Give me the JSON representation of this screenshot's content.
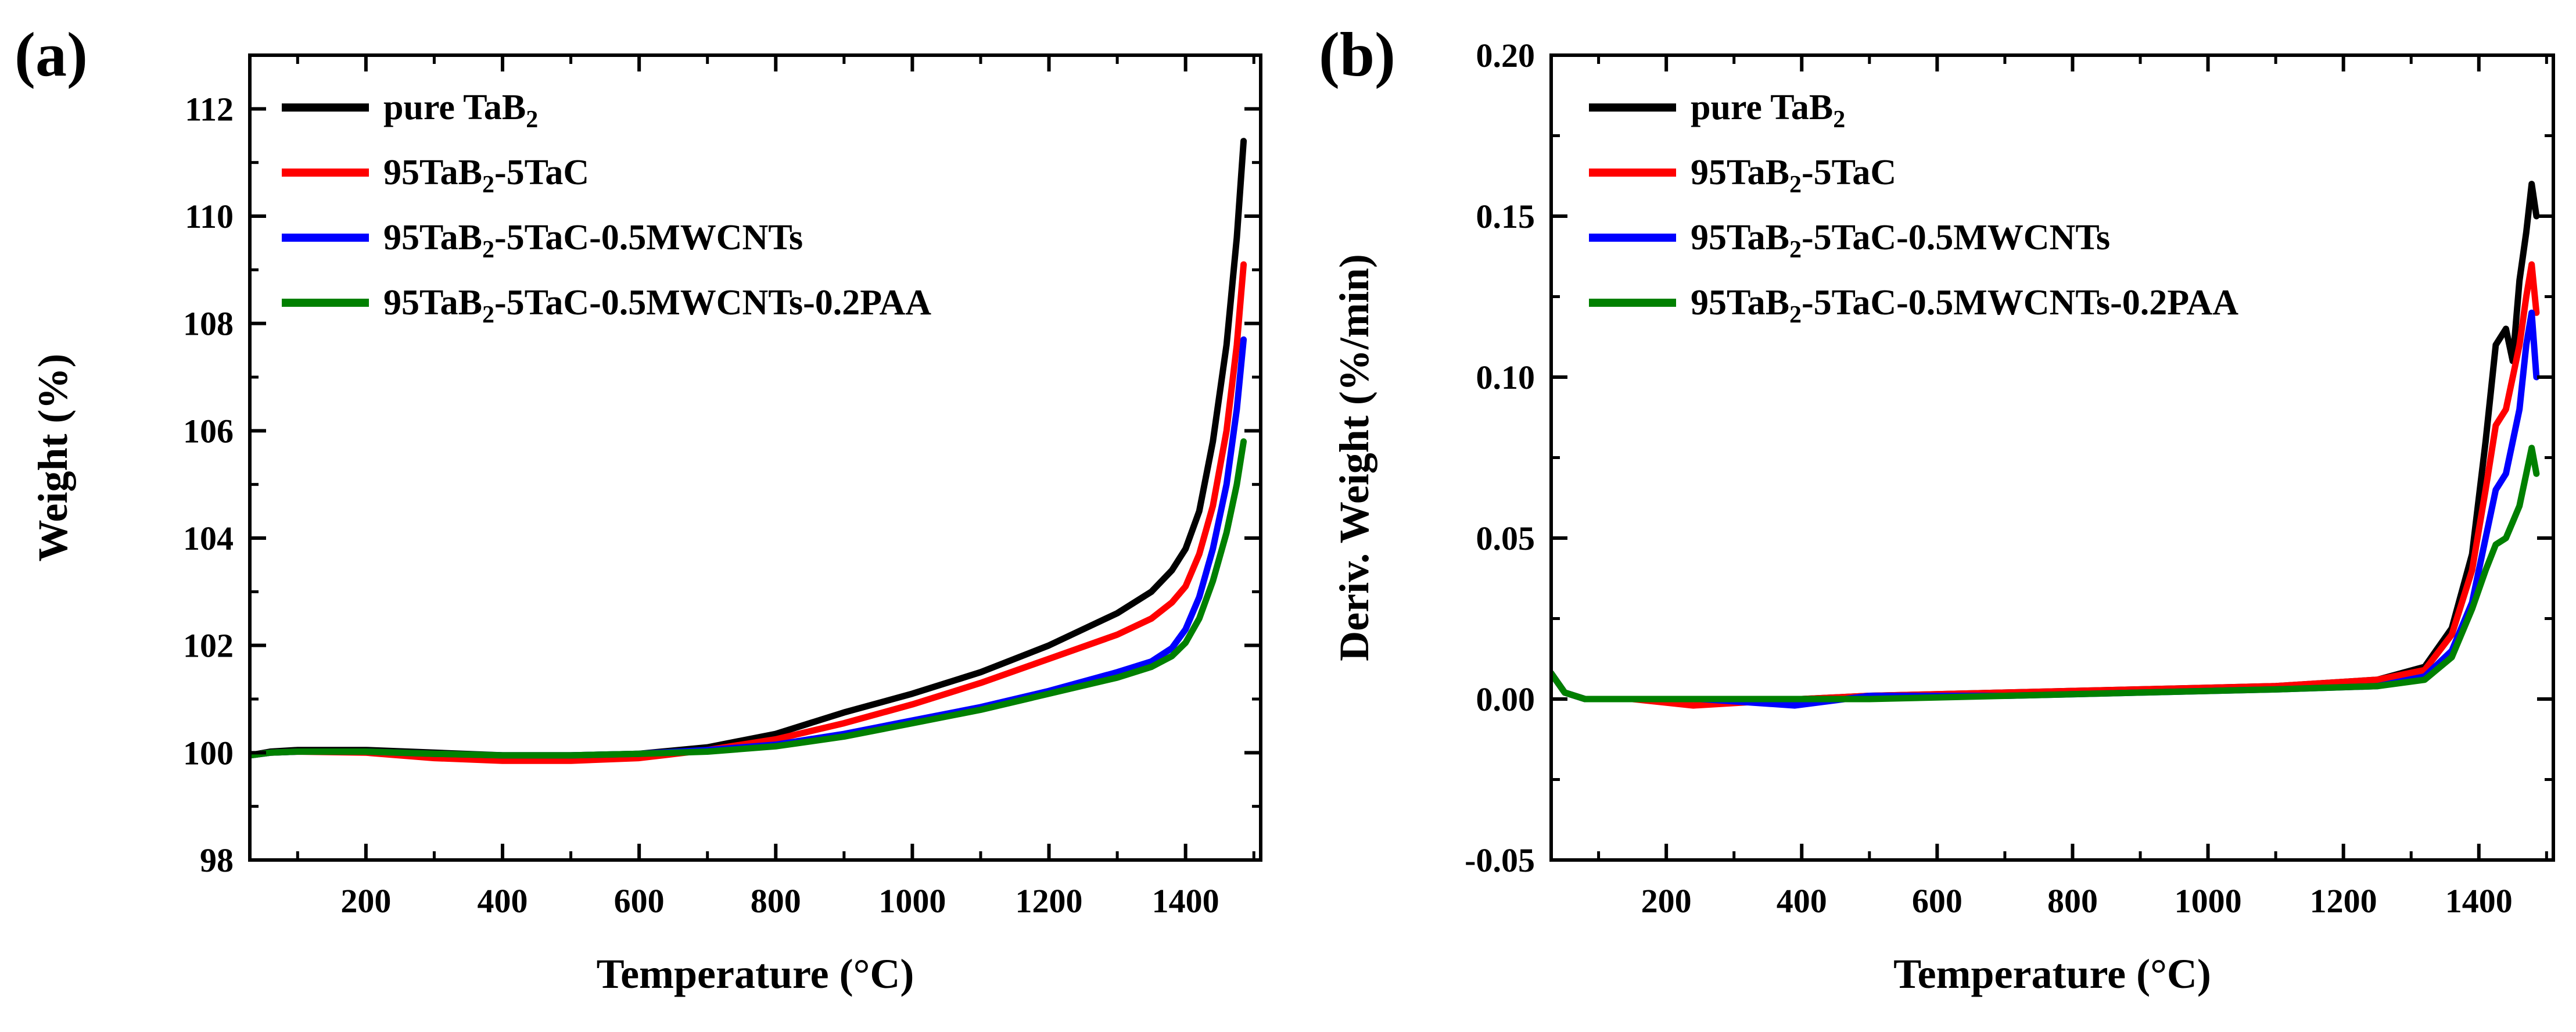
{
  "chart_data": [
    {
      "panel": "(a)",
      "type": "line",
      "xlabel": "Temperature (°C)",
      "ylabel": "Weight (%)",
      "xlim": [
        30,
        1510
      ],
      "ylim": [
        98,
        113
      ],
      "xticks": [
        200,
        400,
        600,
        800,
        1000,
        1200,
        1400
      ],
      "yticks": [
        98,
        100,
        102,
        104,
        106,
        108,
        110,
        112
      ],
      "legend_position": "top-left",
      "series": [
        {
          "name": "pure TaB",
          "sub": "2",
          "suffix": "",
          "color": "#000000",
          "x": [
            30,
            60,
            100,
            200,
            300,
            400,
            500,
            600,
            700,
            800,
            900,
            1000,
            1100,
            1200,
            1300,
            1350,
            1380,
            1400,
            1420,
            1440,
            1460,
            1475,
            1485
          ],
          "y": [
            99.95,
            100.02,
            100.05,
            100.05,
            100.0,
            99.95,
            99.95,
            99.98,
            100.1,
            100.35,
            100.75,
            101.1,
            101.5,
            102.0,
            102.6,
            103.0,
            103.4,
            103.8,
            104.5,
            105.8,
            107.6,
            109.6,
            111.4
          ]
        },
        {
          "name": "95TaB",
          "sub": "2",
          "suffix": "-5TaC",
          "color": "#ff0000",
          "x": [
            30,
            60,
            100,
            200,
            300,
            400,
            500,
            600,
            700,
            800,
            900,
            1000,
            1100,
            1200,
            1300,
            1350,
            1380,
            1400,
            1420,
            1440,
            1460,
            1475,
            1485
          ],
          "y": [
            99.95,
            100.0,
            100.02,
            100.0,
            99.9,
            99.85,
            99.85,
            99.9,
            100.05,
            100.25,
            100.55,
            100.9,
            101.3,
            101.75,
            102.2,
            102.5,
            102.8,
            103.1,
            103.7,
            104.6,
            106.0,
            107.6,
            109.1
          ]
        },
        {
          "name": "95TaB",
          "sub": "2",
          "suffix": "-5TaC-0.5MWCNTs",
          "color": "#0000ff",
          "x": [
            30,
            60,
            100,
            200,
            300,
            400,
            500,
            600,
            700,
            800,
            900,
            1000,
            1100,
            1200,
            1300,
            1350,
            1380,
            1400,
            1420,
            1440,
            1460,
            1475,
            1485
          ],
          "y": [
            99.95,
            100.0,
            100.02,
            100.02,
            99.98,
            99.95,
            99.95,
            99.98,
            100.05,
            100.15,
            100.35,
            100.6,
            100.85,
            101.15,
            101.5,
            101.7,
            101.95,
            102.3,
            102.9,
            103.8,
            105.0,
            106.4,
            107.7
          ]
        },
        {
          "name": "95TaB",
          "sub": "2",
          "suffix": "-5TaC-0.5MWCNTs-0.2PAA",
          "color": "#008000",
          "x": [
            30,
            60,
            100,
            200,
            300,
            400,
            500,
            600,
            700,
            800,
            900,
            1000,
            1100,
            1200,
            1300,
            1350,
            1380,
            1400,
            1420,
            1440,
            1460,
            1475,
            1485
          ],
          "y": [
            99.95,
            100.0,
            100.02,
            100.02,
            99.98,
            99.95,
            99.95,
            99.98,
            100.02,
            100.12,
            100.3,
            100.55,
            100.8,
            101.1,
            101.4,
            101.6,
            101.8,
            102.05,
            102.5,
            103.2,
            104.1,
            105.0,
            105.8
          ]
        }
      ]
    },
    {
      "panel": "(b)",
      "type": "line",
      "xlabel": "Temperature (°C)",
      "ylabel": "Deriv. Weight (%/min)",
      "xlim": [
        30,
        1510
      ],
      "ylim": [
        -0.05,
        0.2
      ],
      "xticks": [
        200,
        400,
        600,
        800,
        1000,
        1200,
        1400
      ],
      "yticks": [
        -0.05,
        0.0,
        0.05,
        0.1,
        0.15,
        0.2
      ],
      "ytick_labels": [
        "-0.05",
        "0.00",
        "0.05",
        "0.10",
        "0.15",
        "0.20"
      ],
      "legend_position": "top-right",
      "series": [
        {
          "name": "pure TaB",
          "sub": "2",
          "suffix": "",
          "color": "#000000",
          "x": [
            30,
            50,
            80,
            150,
            250,
            400,
            500,
            700,
            900,
            1100,
            1250,
            1320,
            1360,
            1390,
            1410,
            1425,
            1440,
            1450,
            1460,
            1470,
            1478,
            1485
          ],
          "y": [
            0.008,
            0.002,
            0.0,
            0.0,
            0.0,
            0.0,
            0.001,
            0.002,
            0.003,
            0.004,
            0.006,
            0.01,
            0.022,
            0.045,
            0.08,
            0.11,
            0.115,
            0.105,
            0.13,
            0.145,
            0.16,
            0.15
          ]
        },
        {
          "name": "95TaB",
          "sub": "2",
          "suffix": "-5TaC",
          "color": "#ff0000",
          "x": [
            30,
            50,
            80,
            150,
            240,
            400,
            500,
            700,
            900,
            1100,
            1250,
            1320,
            1360,
            1390,
            1410,
            1425,
            1440,
            1450,
            1460,
            1470,
            1478,
            1485
          ],
          "y": [
            0.008,
            0.002,
            0.0,
            0.0,
            -0.002,
            0.0,
            0.001,
            0.002,
            0.003,
            0.004,
            0.006,
            0.009,
            0.02,
            0.04,
            0.065,
            0.085,
            0.09,
            0.1,
            0.11,
            0.125,
            0.135,
            0.12
          ]
        },
        {
          "name": "95TaB",
          "sub": "2",
          "suffix": "-5TaC-0.5MWCNTs",
          "color": "#0000ff",
          "x": [
            30,
            50,
            80,
            150,
            250,
            390,
            500,
            700,
            900,
            1100,
            1250,
            1320,
            1360,
            1390,
            1410,
            1425,
            1440,
            1450,
            1460,
            1470,
            1478,
            1485
          ],
          "y": [
            0.008,
            0.002,
            0.0,
            0.0,
            0.0,
            -0.002,
            0.001,
            0.001,
            0.002,
            0.003,
            0.004,
            0.007,
            0.015,
            0.03,
            0.05,
            0.065,
            0.07,
            0.08,
            0.09,
            0.11,
            0.12,
            0.1
          ]
        },
        {
          "name": "95TaB",
          "sub": "2",
          "suffix": "-5TaC-0.5MWCNTs-0.2PAA",
          "color": "#008000",
          "x": [
            30,
            50,
            80,
            150,
            250,
            400,
            500,
            700,
            900,
            1100,
            1250,
            1320,
            1360,
            1390,
            1410,
            1425,
            1440,
            1450,
            1460,
            1470,
            1478,
            1485
          ],
          "y": [
            0.008,
            0.002,
            0.0,
            0.0,
            0.0,
            0.0,
            0.0,
            0.001,
            0.002,
            0.003,
            0.004,
            0.006,
            0.013,
            0.028,
            0.04,
            0.048,
            0.05,
            0.055,
            0.06,
            0.07,
            0.078,
            0.07
          ]
        }
      ]
    }
  ]
}
